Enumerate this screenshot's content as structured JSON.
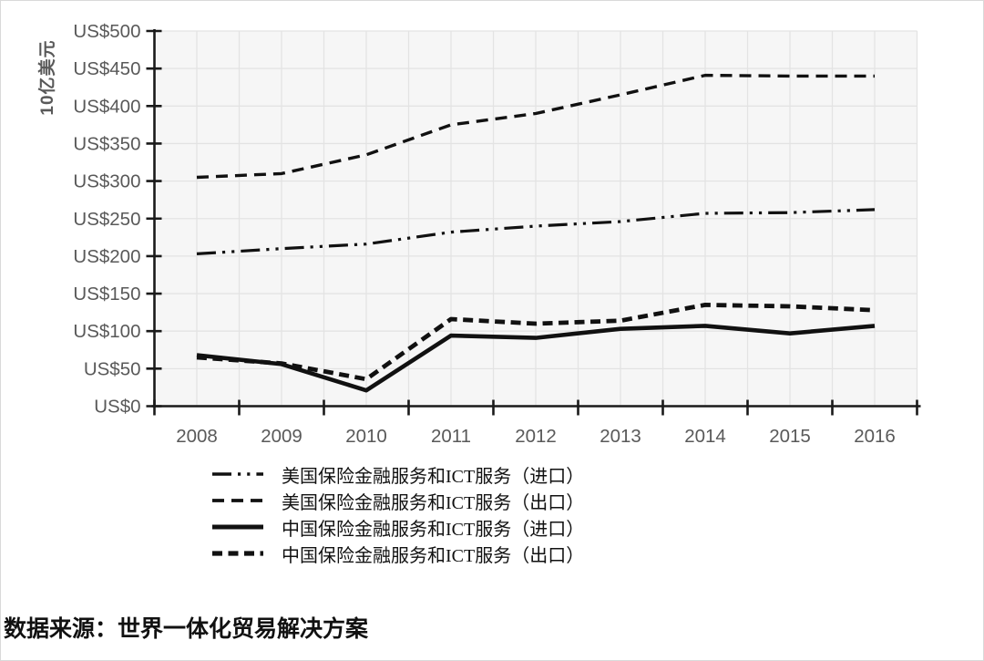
{
  "colors": {
    "line": "#111111",
    "axis": "#1a1a1a",
    "tick_label": "#595959",
    "plot_background": "#f6f6f6",
    "gridline": "#e3e3e3",
    "frame_border": "#d9d9d9"
  },
  "chart_data": {
    "type": "line",
    "title": "",
    "ylabel": "10亿美元",
    "xlabel": "",
    "categories": [
      "2008",
      "2009",
      "2010",
      "2011",
      "2012",
      "2013",
      "2014",
      "2015",
      "2016"
    ],
    "ylim": [
      0,
      500
    ],
    "y_tick_step": 50,
    "y_tick_labels": [
      "US$0",
      "US$50",
      "US$100",
      "US$150",
      "US$200",
      "US$250",
      "US$300",
      "US$350",
      "US$400",
      "US$450",
      "US$500"
    ],
    "grid": true,
    "legend_position": "bottom-left",
    "series": [
      {
        "name": "美国保险金融服务和ICT服务（进口）",
        "style": "dash-dot-dot",
        "color": "#111111",
        "values": [
          203,
          210,
          216,
          232,
          240,
          246,
          257,
          258,
          262
        ]
      },
      {
        "name": "美国保险金融服务和ICT服务（出口）",
        "style": "dashed",
        "color": "#111111",
        "values": [
          305,
          310,
          335,
          375,
          390,
          415,
          441,
          440,
          440
        ]
      },
      {
        "name": "中国保险金融服务和ICT服务（进口）",
        "style": "solid",
        "color": "#111111",
        "values": [
          68,
          56,
          21,
          94,
          91,
          103,
          107,
          97,
          107
        ]
      },
      {
        "name": "中国保险金融服务和ICT服务（出口）",
        "style": "thick-dashed",
        "color": "#111111",
        "values": [
          65,
          57,
          36,
          116,
          110,
          114,
          135,
          133,
          128
        ]
      }
    ]
  },
  "source_note": "数据来源：世界一体化贸易解决方案"
}
